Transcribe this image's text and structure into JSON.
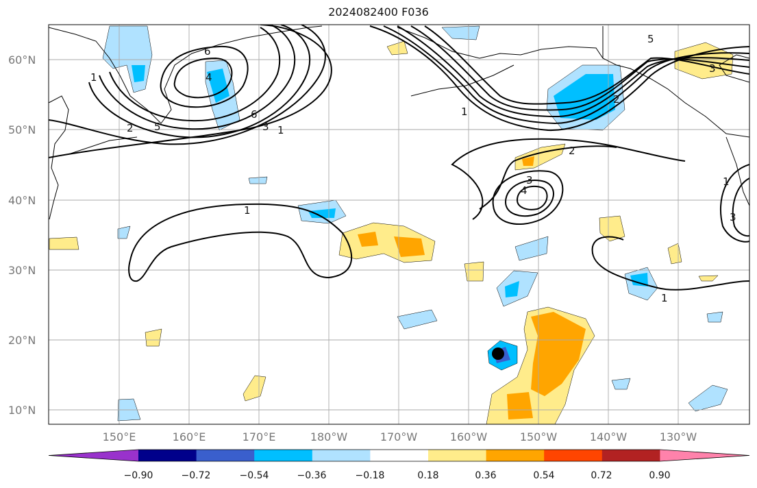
{
  "title": "2024082400 F036",
  "axes": {
    "lat_labels": [
      "10°N",
      "20°N",
      "30°N",
      "40°N",
      "50°N",
      "60°N"
    ],
    "lon_labels": [
      "150°E",
      "160°E",
      "170°E",
      "180°W",
      "170°W",
      "160°W",
      "150°W",
      "140°W",
      "130°W"
    ]
  },
  "colorbar": {
    "ticks": [
      "−0.90",
      "−0.72",
      "−0.54",
      "−0.36",
      "−0.18",
      "0.18",
      "0.36",
      "0.54",
      "0.72",
      "0.90"
    ],
    "colors": [
      "#9932cc",
      "#00008b",
      "#3a5fcd",
      "#00bfff",
      "#b0e2ff",
      "#ffffff",
      "#ffec8b",
      "#ffa500",
      "#ff4500",
      "#b22222",
      "#ff82ab"
    ]
  },
  "contour_labels": [
    "1",
    "1",
    "2",
    "3",
    "4",
    "5",
    "6",
    "6",
    "1",
    "1",
    "2",
    "3",
    "4",
    "2",
    "3",
    "1",
    "5",
    "3",
    "1"
  ],
  "marker": "storm-center"
}
